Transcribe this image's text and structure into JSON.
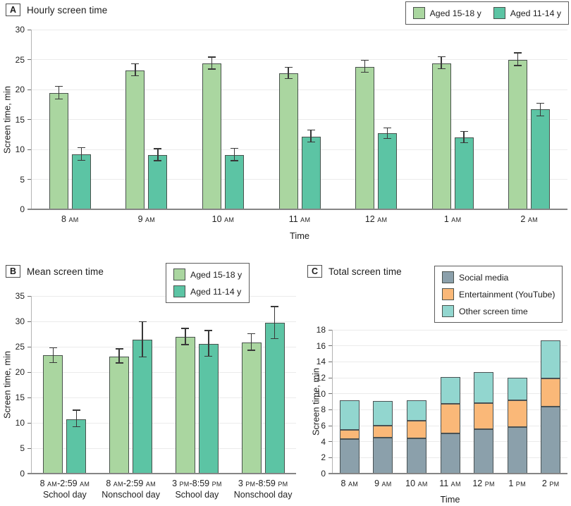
{
  "panels": [
    {
      "label": "A",
      "title": "Hourly screen time",
      "legend": [
        {
          "label": "Aged 15-18 y",
          "color": "#aad6a0"
        },
        {
          "label": "Aged 11-14 y",
          "color": "#5cc4a4"
        }
      ]
    },
    {
      "label": "B",
      "title": "Mean screen time",
      "legend": [
        {
          "label": "Aged 15-18 y",
          "color": "#aad6a0"
        },
        {
          "label": "Aged 11-14 y",
          "color": "#5cc4a4"
        }
      ]
    },
    {
      "label": "C",
      "title": "Total screen time",
      "legend": [
        {
          "label": "Social media",
          "color": "#8ba0ab"
        },
        {
          "label": "Entertainment (YouTube)",
          "color": "#fab878"
        },
        {
          "label": "Other screen time",
          "color": "#92d6cf"
        }
      ]
    }
  ],
  "chart_data": [
    {
      "type": "bar",
      "title": "Hourly screen time",
      "categories": [
        "8 AM",
        "9 AM",
        "10 AM",
        "11 AM",
        "12 AM",
        "1 AM",
        "2 AM"
      ],
      "series": [
        {
          "name": "Aged 15-18 y",
          "color": "#aad6a0",
          "values": [
            19.4,
            23.2,
            24.3,
            22.7,
            23.8,
            24.4,
            25.0
          ],
          "errors": [
            [
              18.4,
              20.5
            ],
            [
              22.3,
              24.3
            ],
            [
              23.4,
              25.4
            ],
            [
              21.8,
              23.7
            ],
            [
              22.9,
              24.9
            ],
            [
              23.5,
              25.5
            ],
            [
              24.0,
              26.1
            ]
          ]
        },
        {
          "name": "Aged 11-14 y",
          "color": "#5cc4a4",
          "values": [
            9.2,
            9.1,
            9.1,
            12.1,
            12.7,
            12.0,
            16.7
          ],
          "errors": [
            [
              8.2,
              10.3
            ],
            [
              8.1,
              10.1
            ],
            [
              8.1,
              10.2
            ],
            [
              11.2,
              13.2
            ],
            [
              11.8,
              13.6
            ],
            [
              11.1,
              13.0
            ],
            [
              15.6,
              17.7
            ]
          ]
        }
      ],
      "xlabel": "Time",
      "ylabel": "Screen time, min",
      "ylim": [
        0,
        30
      ],
      "yticks": [
        0,
        5,
        10,
        15,
        20,
        25,
        30
      ],
      "grid": true,
      "legend_position": "top-right"
    },
    {
      "type": "bar",
      "title": "Mean screen time",
      "categories": [
        {
          "line1": "8 AM-2:59 AM",
          "line2": "School day"
        },
        {
          "line1": "8 AM-2:59 AM",
          "line2": "Nonschool day"
        },
        {
          "line1": "3 PM-8:59 PM",
          "line2": "School day"
        },
        {
          "line1": "3 PM-8:59 PM",
          "line2": "Nonschool day"
        }
      ],
      "series": [
        {
          "name": "Aged 15-18 y",
          "color": "#aad6a0",
          "values": [
            23.3,
            23.1,
            26.9,
            25.8
          ],
          "errors": [
            [
              21.9,
              24.8
            ],
            [
              21.8,
              24.6
            ],
            [
              25.4,
              28.6
            ],
            [
              24.3,
              27.6
            ]
          ]
        },
        {
          "name": "Aged 11-14 y",
          "color": "#5cc4a4",
          "values": [
            10.7,
            26.4,
            25.6,
            29.7
          ],
          "errors": [
            [
              9.2,
              12.5
            ],
            [
              23.0,
              29.9
            ],
            [
              23.1,
              28.2
            ],
            [
              26.6,
              32.9
            ]
          ]
        }
      ],
      "xlabel": "",
      "ylabel": "Screen time, min",
      "ylim": [
        0,
        35
      ],
      "yticks": [
        0,
        5,
        10,
        15,
        20,
        25,
        30,
        35
      ],
      "grid": true,
      "legend_position": "top-right"
    },
    {
      "type": "stacked-bar",
      "title": "Total screen time",
      "categories": [
        "8 AM",
        "9 AM",
        "10 AM",
        "11 AM",
        "12 PM",
        "1 PM",
        "2 PM"
      ],
      "series": [
        {
          "name": "Social media",
          "color": "#8ba0ab",
          "values": [
            4.3,
            4.5,
            4.4,
            5.0,
            5.6,
            5.8,
            8.4
          ]
        },
        {
          "name": "Entertainment (YouTube)",
          "color": "#fab878",
          "values": [
            1.2,
            1.5,
            2.2,
            3.7,
            3.2,
            3.4,
            3.5
          ]
        },
        {
          "name": "Other screen time",
          "color": "#92d6cf",
          "values": [
            3.7,
            3.1,
            2.6,
            3.4,
            3.9,
            2.8,
            4.8
          ]
        }
      ],
      "xlabel": "Time",
      "ylabel": "Screen time, min",
      "ylim": [
        0,
        18
      ],
      "yticks": [
        0,
        2,
        4,
        6,
        8,
        10,
        12,
        14,
        16,
        18
      ],
      "grid": true,
      "legend_position": "top-right"
    }
  ]
}
